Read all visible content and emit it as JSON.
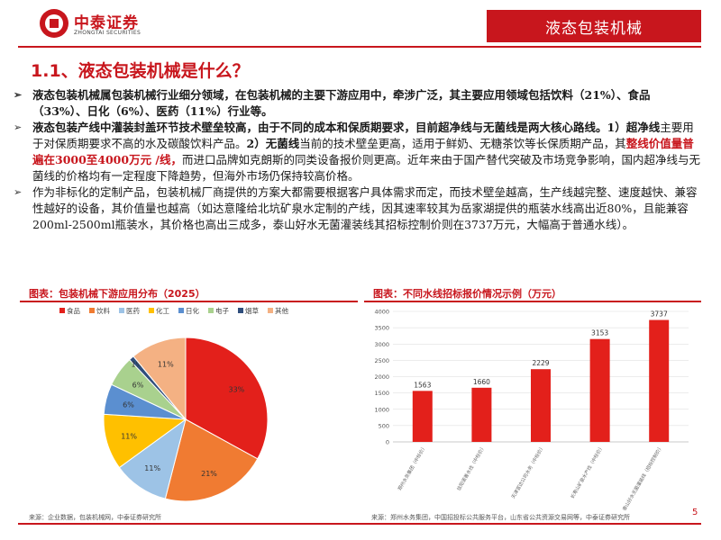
{
  "header": {
    "logo_cn": "中泰证券",
    "logo_en": "ZHONGTAI SECURITIES",
    "badge": "液态包装机械"
  },
  "section_title": "1.1、液态包装机械是什么？",
  "bullets": {
    "b1": "液态包装机械属包装机械行业细分领域，在包装机械的主要下游应用中，牵涉广泛，其主要应用领域包括饮料（21%）、食品（33%）、日化（6%）、医药（11%）行业等。",
    "b2_lead": "液态包装产线中灌装封盖环节技术壁垒较高，由于不同的成本和保质期要求，目前超净线与无菌线是两大核心路线。1）",
    "b2_kw1": "超净线",
    "b2_t1": "主要用于对保质期要求不高的水及碳酸饮料产品。",
    "b2_t2": "2）",
    "b2_kw2": "无菌线",
    "b2_t3": "当前的技术壁垒更高，适用于鲜奶、无糖茶饮等长保质期产品，其",
    "b2_hl": "整线价值量普遍在3000至4000万元 /线，",
    "b2_t4": "而进口品牌如克朗斯的同类设备报价则更高。近年来由于国产替代突破及市场竞争影响，国内超净线与无菌线的价格均有一定程度下降趋势，但海外市场仍保持较高价格。",
    "b3": "作为非标化的定制产品，包装机械厂商提供的方案大都需要根据客户具体需求而定，而技术壁垒越高，生产线越完整、速度越快、兼容性越好的设备，其价值量也越高（如达意隆给北坑矿泉水定制的产线，因其速率较其为岳家湖提供的瓶装水线高出近80%，且能兼容200ml-2500ml瓶装水，其价格也高出三成多，泰山好水无菌灌装线其招标控制价则在3737万元，大幅高于普通水线）。"
  },
  "panels": {
    "left_title": "图表：包装机械下游应用分布（2025）",
    "right_title": "图表：不同水线招标报价情况示例（万元）",
    "left_source": "来源：企业数据，包装机械网，中泰证券研究所",
    "right_source": "来源：郑州水务集团，中国招投标公共服务平台，山东省公共资源交易网等，中泰证券研究所"
  },
  "page_number": "5",
  "chart_data": [
    {
      "type": "pie",
      "title": "图表：包装机械下游应用分布（2025）",
      "legend_position": "top",
      "slices": [
        {
          "name": "食品",
          "value": 33,
          "label": "33%",
          "color": "#e3201b"
        },
        {
          "name": "饮料",
          "value": 21,
          "label": "21%",
          "color": "#f07b32"
        },
        {
          "name": "医药",
          "value": 11,
          "label": "11%",
          "color": "#9dc3e6"
        },
        {
          "name": "化工",
          "value": 11,
          "label": "11%",
          "color": "#ffc000"
        },
        {
          "name": "日化",
          "value": 6,
          "label": "6%",
          "color": "#5b8fd0"
        },
        {
          "name": "电子",
          "value": 6,
          "label": "6%",
          "color": "#a9d18e"
        },
        {
          "name": "烟草",
          "value": 1,
          "label": "1%",
          "color": "#2f4e7c"
        },
        {
          "name": "其他",
          "value": 11,
          "label": "11%",
          "color": "#f4b183"
        }
      ]
    },
    {
      "type": "bar",
      "title": "图表：不同水线招标报价情况示例（万元）",
      "categories": [
        "郑州水务集团（中标价）",
        "信阳诺善水线（中标价）",
        "天津宣达公司水务（中标价）",
        "长寿山矿泉水产线（中标价）",
        "泰山好水无菌灌装线（招标控制价）"
      ],
      "values": [
        1563,
        1660,
        2229,
        3153,
        3737
      ],
      "ylim": [
        0,
        4000
      ],
      "yticks": [
        0,
        500,
        1000,
        1500,
        2000,
        2500,
        3000,
        3500,
        4000
      ],
      "bar_color": "#e3201b",
      "grid": true
    }
  ]
}
